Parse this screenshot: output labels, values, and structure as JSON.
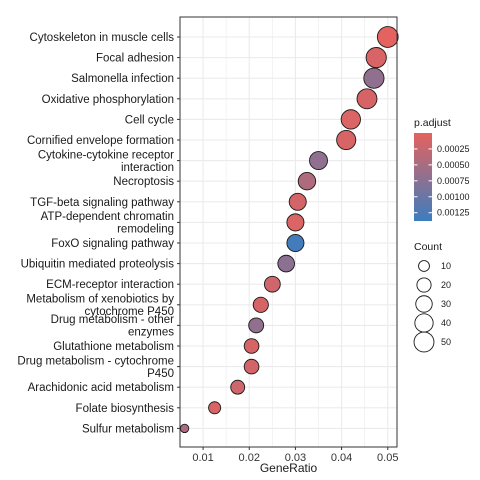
{
  "chart_data": {
    "type": "scatter",
    "xlabel": "GeneRatio",
    "ylabel": "",
    "xlim": [
      0.005,
      0.052
    ],
    "x_ticks": [
      "0.01",
      "0.02",
      "0.03",
      "0.04",
      "0.05"
    ],
    "x_tick_values": [
      0.01,
      0.02,
      0.03,
      0.04,
      0.05
    ],
    "grid": true,
    "legend_placement": "right",
    "points": [
      {
        "term": [
          "Cytoskeleton in muscle cells"
        ],
        "gene_ratio": 0.05,
        "count": 56,
        "p_adjust": 1e-05
      },
      {
        "term": [
          "Focal adhesion"
        ],
        "gene_ratio": 0.0475,
        "count": 52,
        "p_adjust": 0.0001
      },
      {
        "term": [
          "Salmonella infection"
        ],
        "gene_ratio": 0.047,
        "count": 52,
        "p_adjust": 0.00068
      },
      {
        "term": [
          "Oxidative phosphorylation"
        ],
        "gene_ratio": 0.0455,
        "count": 50,
        "p_adjust": 0.00012
      },
      {
        "term": [
          "Cell cycle"
        ],
        "gene_ratio": 0.042,
        "count": 46,
        "p_adjust": 8e-05
      },
      {
        "term": [
          "Cornified envelope formation"
        ],
        "gene_ratio": 0.041,
        "count": 45,
        "p_adjust": 0.0001
      },
      {
        "term": [
          "Cytokine-cytokine receptor",
          "interaction"
        ],
        "gene_ratio": 0.035,
        "count": 38,
        "p_adjust": 0.0007
      },
      {
        "term": [
          "Necroptosis"
        ],
        "gene_ratio": 0.0325,
        "count": 35,
        "p_adjust": 0.00045
      },
      {
        "term": [
          "TGF-beta signaling pathway"
        ],
        "gene_ratio": 0.0305,
        "count": 33,
        "p_adjust": 0.00015
      },
      {
        "term": [
          "ATP-dependent chromatin",
          "remodeling"
        ],
        "gene_ratio": 0.03,
        "count": 33,
        "p_adjust": 8e-05
      },
      {
        "term": [
          "FoxO signaling pathway"
        ],
        "gene_ratio": 0.03,
        "count": 33,
        "p_adjust": 0.00132
      },
      {
        "term": [
          "Ubiquitin mediated proteolysis"
        ],
        "gene_ratio": 0.028,
        "count": 31,
        "p_adjust": 0.00072
      },
      {
        "term": [
          "ECM-receptor interaction"
        ],
        "gene_ratio": 0.025,
        "count": 27,
        "p_adjust": 0.00018
      },
      {
        "term": [
          "Metabolism of xenobiotics by",
          "cytochrome P450"
        ],
        "gene_ratio": 0.0225,
        "count": 24,
        "p_adjust": 0.00012
      },
      {
        "term": [
          "Drug metabolism - other",
          "enzymes"
        ],
        "gene_ratio": 0.0215,
        "count": 23,
        "p_adjust": 0.00068
      },
      {
        "term": [
          "Glutathione metabolism"
        ],
        "gene_ratio": 0.0205,
        "count": 22,
        "p_adjust": 0.00012
      },
      {
        "term": [
          "Drug metabolism - cytochrome",
          "P450"
        ],
        "gene_ratio": 0.0205,
        "count": 22,
        "p_adjust": 0.00015
      },
      {
        "term": [
          "Arachidonic acid metabolism"
        ],
        "gene_ratio": 0.0175,
        "count": 19,
        "p_adjust": 0.00018
      },
      {
        "term": [
          "Folate biosynthesis"
        ],
        "gene_ratio": 0.0125,
        "count": 13,
        "p_adjust": 0.0001
      },
      {
        "term": [
          "Sulfur metabolism"
        ],
        "gene_ratio": 0.006,
        "count": 6,
        "p_adjust": 0.00045
      }
    ],
    "color_legend": {
      "title": "p.adjust",
      "range": [
        0.0,
        0.00138
      ],
      "low_color": "#e5625e",
      "high_color": "#3b7dbf",
      "tick_labels": [
        "0.00025",
        "0.00050",
        "0.00075",
        "0.00100",
        "0.00125"
      ],
      "tick_values": [
        0.00025,
        0.0005,
        0.00075,
        0.001,
        0.00125
      ]
    },
    "size_legend": {
      "title": "Count",
      "values": [
        10,
        20,
        30,
        40,
        50
      ],
      "labels": [
        "10",
        "20",
        "30",
        "40",
        "50"
      ]
    },
    "colors": {
      "panel_border": "#333333",
      "grid": "#ebebeb",
      "point_outline": "#1a1a1a"
    }
  }
}
